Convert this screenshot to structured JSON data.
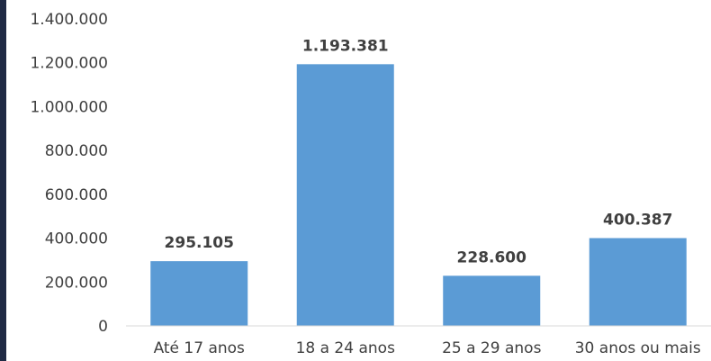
{
  "chart_data": {
    "type": "bar",
    "categories": [
      "Até 17 anos",
      "18 a 24 anos",
      "25 a 29 anos",
      "30 anos ou mais"
    ],
    "values": [
      295105,
      1193381,
      228600,
      400387
    ],
    "data_labels": [
      "295.105",
      "1.193.381",
      "228.600",
      "400.387"
    ],
    "y_tick_labels": [
      "0",
      "200.000",
      "400.000",
      "600.000",
      "800.000",
      "1.000.000",
      "1.200.000",
      "1.400.000"
    ],
    "ylim": [
      0,
      1400000
    ],
    "title": "",
    "xlabel": "",
    "ylabel": "",
    "grid": false,
    "legend": "none",
    "bar_color": "#5b9bd5",
    "axis_color": "#d9d9d9"
  }
}
